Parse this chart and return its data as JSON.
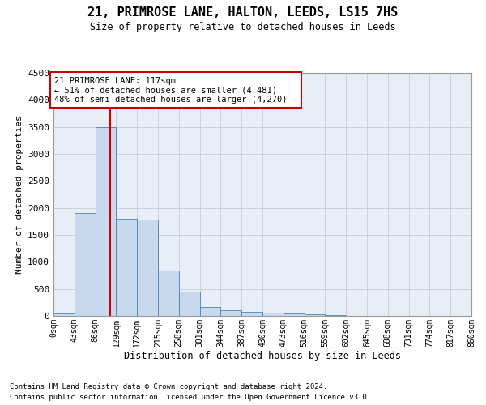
{
  "title": "21, PRIMROSE LANE, HALTON, LEEDS, LS15 7HS",
  "subtitle": "Size of property relative to detached houses in Leeds",
  "xlabel": "Distribution of detached houses by size in Leeds",
  "ylabel": "Number of detached properties",
  "footnote1": "Contains HM Land Registry data © Crown copyright and database right 2024.",
  "footnote2": "Contains public sector information licensed under the Open Government Licence v3.0.",
  "annotation_line1": "21 PRIMROSE LANE: 117sqm",
  "annotation_line2": "← 51% of detached houses are smaller (4,481)",
  "annotation_line3": "48% of semi-detached houses are larger (4,270) →",
  "bar_color": "#c9d9ed",
  "bar_edge_color": "#4f80b0",
  "grid_color": "#cccccc",
  "bg_color": "#e8eef7",
  "vline_color": "#cc0000",
  "box_edge_color": "#cc0000",
  "bin_edges": [
    0,
    43,
    86,
    129,
    172,
    215,
    258,
    301,
    344,
    387,
    430,
    473,
    516,
    559,
    602,
    645,
    688,
    731,
    774,
    817,
    860
  ],
  "bin_labels": [
    "0sqm",
    "43sqm",
    "86sqm",
    "129sqm",
    "172sqm",
    "215sqm",
    "258sqm",
    "301sqm",
    "344sqm",
    "387sqm",
    "430sqm",
    "473sqm",
    "516sqm",
    "559sqm",
    "602sqm",
    "645sqm",
    "688sqm",
    "731sqm",
    "774sqm",
    "817sqm",
    "860sqm"
  ],
  "bar_heights": [
    45,
    1900,
    3500,
    1800,
    1790,
    840,
    455,
    165,
    105,
    75,
    55,
    45,
    25,
    8,
    4,
    3,
    3,
    3,
    3,
    3
  ],
  "property_size": 117,
  "ylim": [
    0,
    4500
  ],
  "yticks": [
    0,
    500,
    1000,
    1500,
    2000,
    2500,
    3000,
    3500,
    4000,
    4500
  ]
}
